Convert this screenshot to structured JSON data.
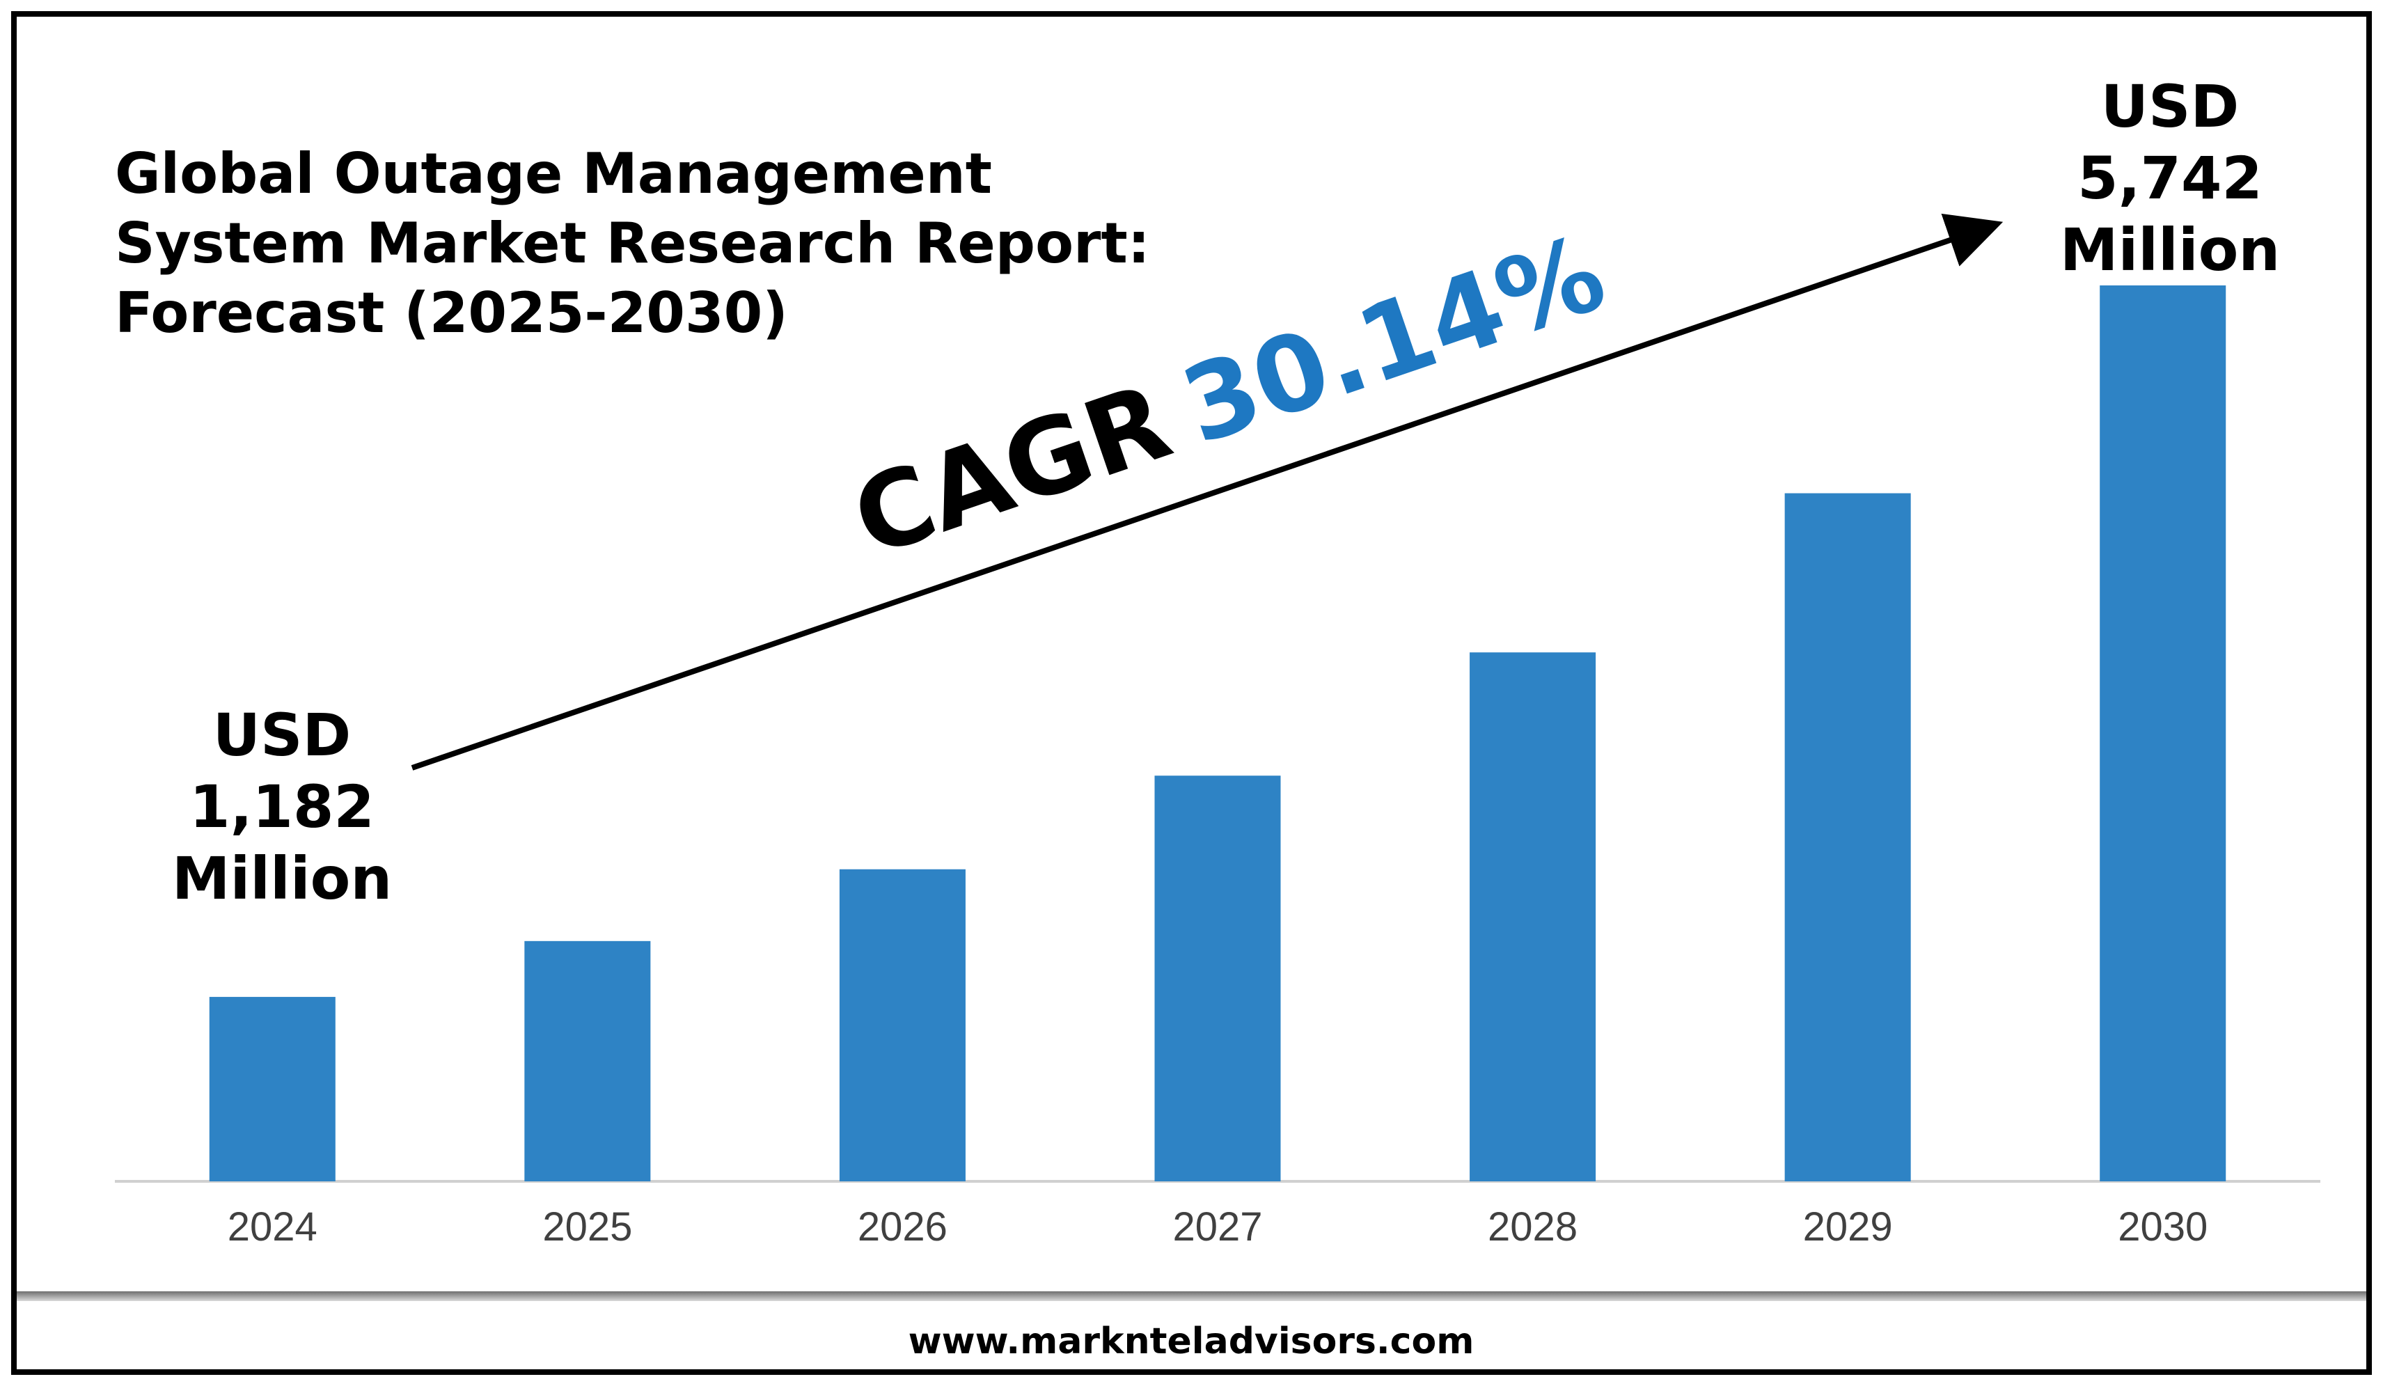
{
  "chart_data": {
    "type": "bar",
    "title_lines": [
      "Global Outage Management",
      "System Market Research Report:",
      "Forecast (2025-2030)"
    ],
    "categories": [
      "2024",
      "2025",
      "2026",
      "2027",
      "2028",
      "2029",
      "2030"
    ],
    "values": [
      1182,
      1540,
      2000,
      2600,
      3390,
      4410,
      5742
    ],
    "ylim": [
      0,
      5742
    ],
    "grid": false,
    "legend": "none",
    "bar_color": "#2e83c5",
    "annotations": {
      "start_label": [
        "USD",
        "1,182",
        "Million"
      ],
      "end_label": [
        "USD",
        "5,742",
        "Million"
      ],
      "cagr_prefix": "CAGR",
      "cagr_value": "30.14%",
      "cagr_value_color": "#1e78c2"
    }
  },
  "footer": {
    "url": "www.marknteladvisors.com"
  }
}
